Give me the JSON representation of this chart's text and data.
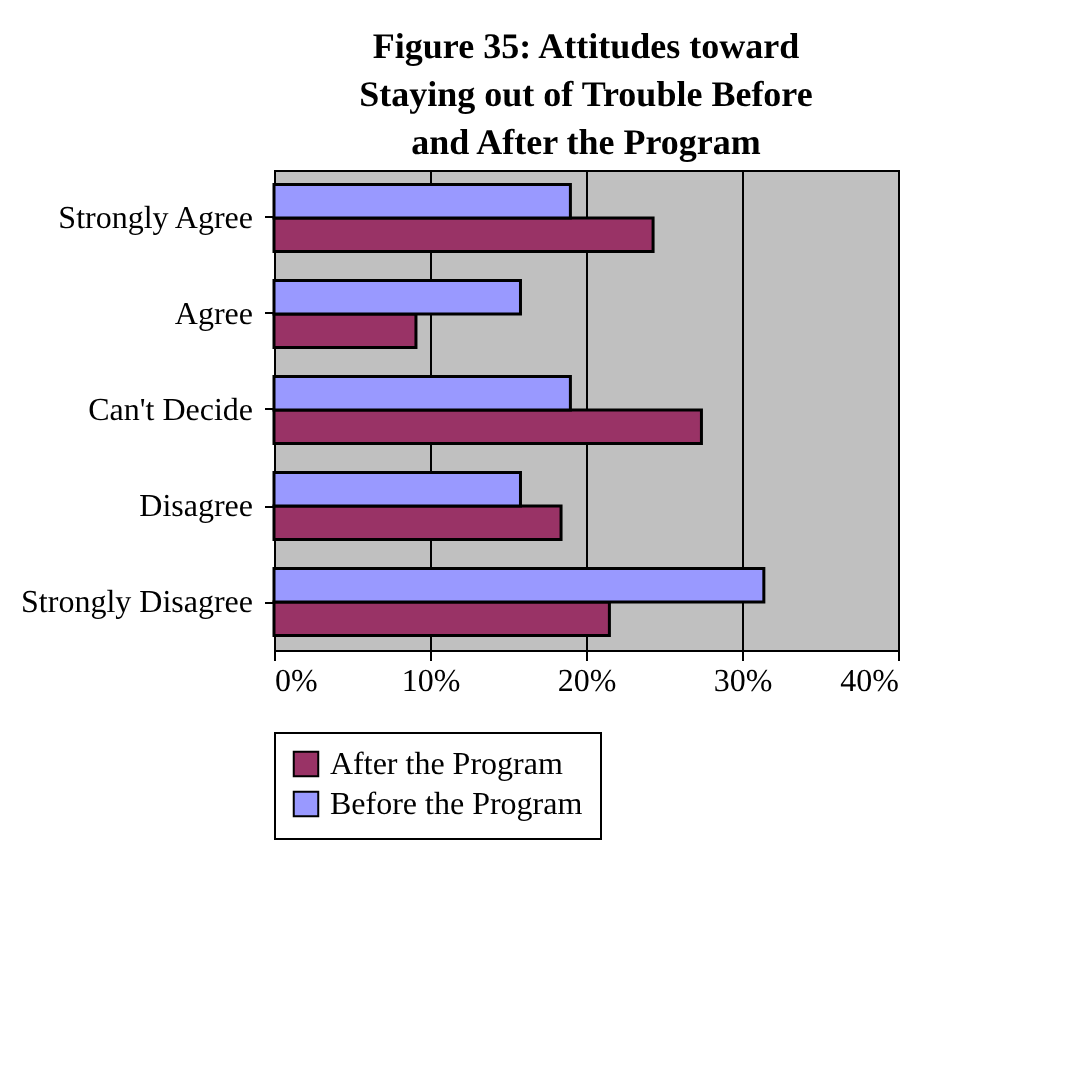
{
  "chart_data": {
    "type": "bar",
    "orientation": "horizontal",
    "title": "Figure 35: Attitudes toward Staying out of Trouble Before and After the Program",
    "categories": [
      "Strongly Agree",
      "Agree",
      "Can't Decide",
      "Disagree",
      "Strongly Disagree"
    ],
    "series": [
      {
        "name": "After the Program",
        "color": "#993366",
        "values": [
          24.3,
          9.1,
          27.4,
          18.4,
          21.5
        ]
      },
      {
        "name": "Before the Program",
        "color": "#9999ff",
        "values": [
          19,
          15.8,
          19,
          15.8,
          31.4
        ]
      }
    ],
    "xlim": [
      0,
      40
    ],
    "xticks": [
      {
        "value": 0,
        "label": "0%"
      },
      {
        "value": 10,
        "label": "10%"
      },
      {
        "value": 20,
        "label": "20%"
      },
      {
        "value": 30,
        "label": "30%"
      },
      {
        "value": 40,
        "label": "40%"
      }
    ],
    "grid": "x",
    "legend": "bottom"
  }
}
